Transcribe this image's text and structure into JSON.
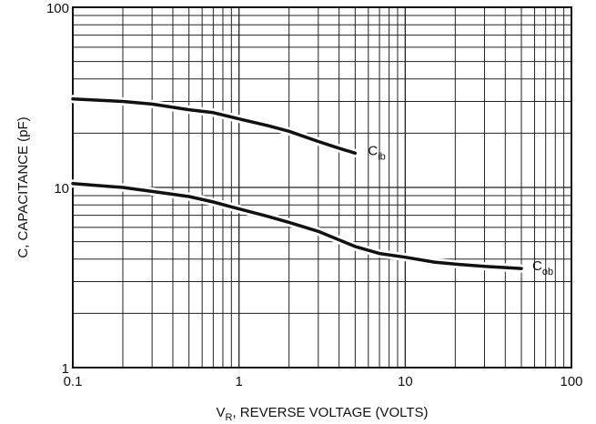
{
  "chart_data": {
    "type": "line",
    "xscale": "log",
    "yscale": "log",
    "xlim": [
      0.1,
      100
    ],
    "ylim": [
      1,
      100
    ],
    "grid": true,
    "xlabel": {
      "main": "V",
      "sub": "R",
      "rest": ", REVERSE VOLTAGE (VOLTS)"
    },
    "ylabel": "C, CAPACITANCE (pF)",
    "x_ticks": [
      {
        "value": 0.1,
        "label": "0.1"
      },
      {
        "value": 1,
        "label": "1"
      },
      {
        "value": 10,
        "label": "10"
      },
      {
        "value": 100,
        "label": "100"
      }
    ],
    "y_ticks": [
      {
        "value": 1,
        "label": "1"
      },
      {
        "value": 10,
        "label": "10"
      },
      {
        "value": 100,
        "label": "100"
      }
    ],
    "series": [
      {
        "name": {
          "main": "C",
          "sub": "ib"
        },
        "x": [
          0.1,
          0.2,
          0.3,
          0.5,
          0.7,
          1.0,
          1.5,
          2.0,
          3.0,
          4.0,
          5.0
        ],
        "y": [
          31,
          30,
          29,
          27,
          26,
          24,
          22,
          20.5,
          18,
          16.5,
          15.5
        ]
      },
      {
        "name": {
          "main": "C",
          "sub": "ob"
        },
        "x": [
          0.1,
          0.2,
          0.3,
          0.5,
          0.7,
          1.0,
          1.5,
          2.0,
          3.0,
          5.0,
          7.0,
          10,
          15,
          20,
          30,
          50
        ],
        "y": [
          10.5,
          10,
          9.5,
          8.9,
          8.3,
          7.6,
          6.9,
          6.4,
          5.7,
          4.7,
          4.3,
          4.1,
          3.85,
          3.75,
          3.65,
          3.55
        ]
      }
    ]
  }
}
